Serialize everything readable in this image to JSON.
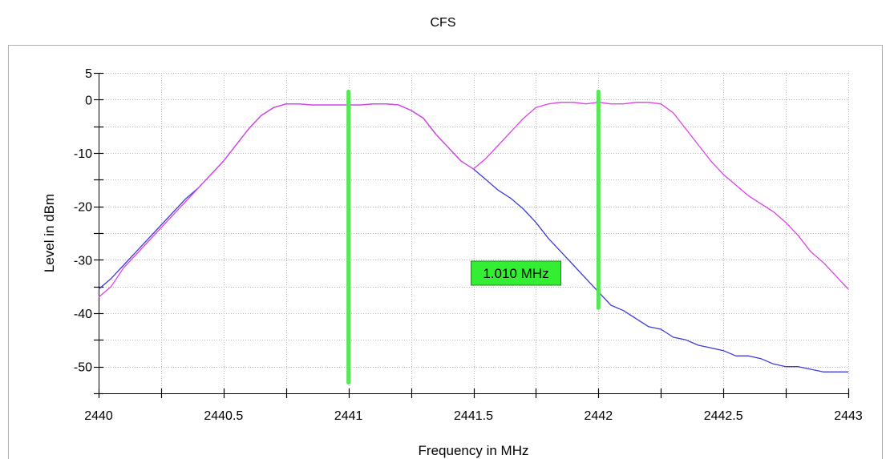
{
  "chart_data": {
    "type": "line",
    "title": "CFS",
    "xlabel": "Frequency in MHz",
    "ylabel": "Level in dBm",
    "xlim": [
      2440,
      2443
    ],
    "ylim": [
      -55,
      5
    ],
    "x_ticks": [
      "2440",
      "2440.5",
      "2441",
      "2441.5",
      "2442",
      "2442.5",
      "2443"
    ],
    "x_tick_values": [
      2440,
      2440.5,
      2441,
      2441.5,
      2442,
      2442.5,
      2443
    ],
    "y_ticks": [
      "5",
      "0",
      "-10",
      "-20",
      "-30",
      "-40",
      "-50"
    ],
    "y_tick_values": [
      5,
      0,
      -10,
      -20,
      -30,
      -40,
      -50
    ],
    "grid": true,
    "series": [
      {
        "color": "#3b3bdb",
        "x": [
          2440.0,
          2440.05,
          2440.1,
          2440.15,
          2440.2,
          2440.25,
          2440.3,
          2440.35,
          2440.4,
          2440.45,
          2440.5,
          2440.55,
          2440.6,
          2440.65,
          2440.7,
          2440.75,
          2440.8,
          2440.85,
          2440.9,
          2440.95,
          2441.0,
          2441.05,
          2441.1,
          2441.15,
          2441.2,
          2441.25,
          2441.3,
          2441.35,
          2441.4,
          2441.45,
          2441.5,
          2441.55,
          2441.6,
          2441.65,
          2441.7,
          2441.75,
          2441.8,
          2441.85,
          2441.9,
          2441.95,
          2442.0,
          2442.05,
          2442.1,
          2442.15,
          2442.2,
          2442.25,
          2442.3,
          2442.35,
          2442.4,
          2442.45,
          2442.5,
          2442.55,
          2442.6,
          2442.65,
          2442.7,
          2442.75,
          2442.8,
          2442.85,
          2442.9,
          2442.95,
          2443.0
        ],
        "y": [
          -35.5,
          -33.5,
          -31.0,
          -28.5,
          -26.0,
          -23.5,
          -21.0,
          -18.5,
          -16.5,
          -14.0,
          -11.5,
          -8.5,
          -5.5,
          -3.0,
          -1.5,
          -0.8,
          -0.8,
          -1.0,
          -1.0,
          -1.0,
          -1.0,
          -1.0,
          -0.8,
          -0.8,
          -1.0,
          -2.0,
          -3.5,
          -6.5,
          -9.0,
          -11.5,
          -13.0,
          -15.0,
          -17.0,
          -18.5,
          -20.5,
          -23.0,
          -26.0,
          -28.5,
          -31.0,
          -33.5,
          -36.0,
          -38.5,
          -39.5,
          -41.0,
          -42.5,
          -43.0,
          -44.5,
          -45.0,
          -46.0,
          -46.5,
          -47.0,
          -48.0,
          -48.0,
          -48.5,
          -49.5,
          -50.0,
          -50.0,
          -50.5,
          -51.0,
          -51.0,
          -51.0
        ]
      },
      {
        "color": "#e040e8",
        "x": [
          2440.0,
          2440.05,
          2440.1,
          2440.15,
          2440.2,
          2440.25,
          2440.3,
          2440.35,
          2440.4,
          2440.45,
          2440.5,
          2440.55,
          2440.6,
          2440.65,
          2440.7,
          2440.75,
          2440.8,
          2440.85,
          2440.9,
          2440.95,
          2441.0,
          2441.05,
          2441.1,
          2441.15,
          2441.2,
          2441.25,
          2441.3,
          2441.35,
          2441.4,
          2441.45,
          2441.5,
          2441.55,
          2441.6,
          2441.65,
          2441.7,
          2441.75,
          2441.8,
          2441.85,
          2441.9,
          2441.95,
          2442.0,
          2442.05,
          2442.1,
          2442.15,
          2442.2,
          2442.25,
          2442.3,
          2442.35,
          2442.4,
          2442.45,
          2442.5,
          2442.55,
          2442.6,
          2442.65,
          2442.7,
          2442.75,
          2442.8,
          2442.85,
          2442.9,
          2442.95,
          2443.0
        ],
        "y": [
          -37.0,
          -35.0,
          -31.5,
          -29.0,
          -26.5,
          -24.0,
          -21.5,
          -19.0,
          -16.5,
          -14.0,
          -11.5,
          -8.5,
          -5.5,
          -3.0,
          -1.5,
          -0.8,
          -0.8,
          -1.0,
          -1.0,
          -1.0,
          -1.0,
          -1.0,
          -0.8,
          -0.8,
          -1.0,
          -2.0,
          -3.5,
          -6.5,
          -9.0,
          -11.5,
          -13.0,
          -11.0,
          -8.5,
          -6.0,
          -3.5,
          -1.5,
          -0.8,
          -0.5,
          -0.5,
          -0.8,
          -0.5,
          -0.8,
          -0.8,
          -0.5,
          -0.5,
          -0.8,
          -2.5,
          -5.5,
          -8.5,
          -11.5,
          -14.0,
          -16.0,
          -18.0,
          -19.5,
          -21.0,
          -23.0,
          -25.5,
          -28.5,
          -30.5,
          -33.0,
          -35.5
        ]
      }
    ],
    "markers": [
      {
        "x": 2441.0,
        "y_range": [
          -53,
          1.5
        ],
        "color": "#55e855"
      },
      {
        "x": 2442.0,
        "y_range": [
          -39,
          1.5
        ],
        "color": "#55e855"
      }
    ],
    "annotations": [
      {
        "text": "1.010 MHz",
        "x": 2441.67,
        "y": -32.5,
        "background": "#33ee33"
      }
    ]
  }
}
